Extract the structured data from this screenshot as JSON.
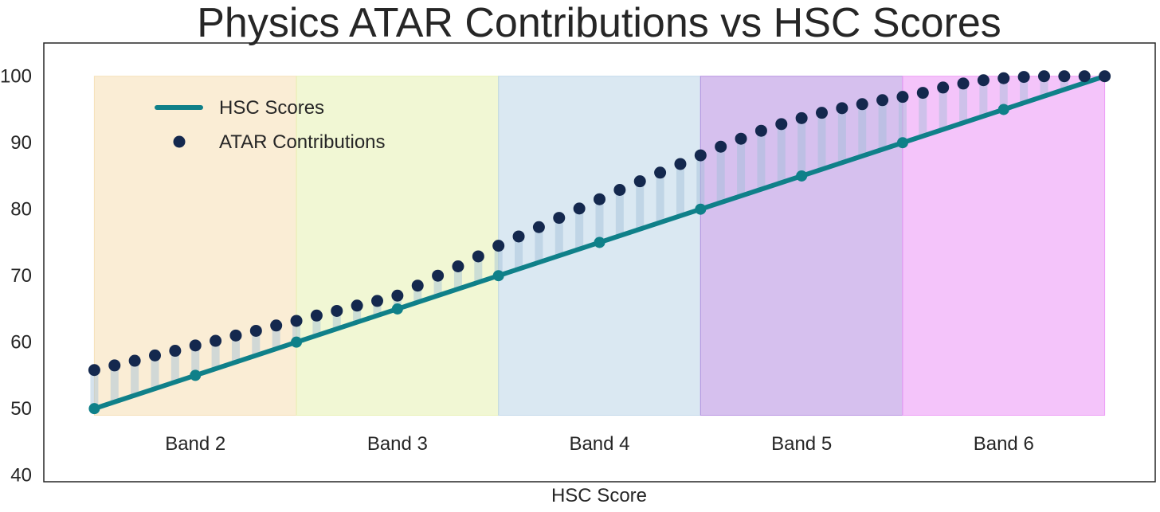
{
  "chart_data": {
    "type": "line",
    "title": "Physics ATAR Contributions vs HSC Scores",
    "xlabel": "HSC Score",
    "ylabel": "",
    "xlim": [
      47.5,
      102.5
    ],
    "ylim": [
      39,
      105
    ],
    "yticks": [
      40,
      50,
      60,
      70,
      80,
      90,
      100
    ],
    "grid": false,
    "legend_position": "top-left",
    "bands": [
      {
        "label": "Band 2",
        "x0": 50,
        "x1": 60,
        "color": "#f5deb3"
      },
      {
        "label": "Band 3",
        "x0": 60,
        "x1": 70,
        "color": "#e5f0b0"
      },
      {
        "label": "Band 4",
        "x0": 70,
        "x1": 80,
        "color": "#bcd6e8"
      },
      {
        "label": "Band 5",
        "x0": 80,
        "x1": 90,
        "color": "#b48ce0"
      },
      {
        "label": "Band 6",
        "x0": 90,
        "x1": 100,
        "color": "#eb94f5"
      }
    ],
    "band_y_range": [
      49,
      100
    ],
    "series": [
      {
        "name": "HSC Scores",
        "type": "line",
        "color": "#0f8089",
        "x": [
          50,
          55,
          60,
          65,
          70,
          75,
          80,
          85,
          90,
          95,
          100
        ],
        "values": [
          50,
          55,
          60,
          65,
          70,
          75,
          80,
          85,
          90,
          95,
          100
        ]
      },
      {
        "name": "ATAR Contributions",
        "type": "scatter",
        "color": "#14284e",
        "x": [
          50,
          51,
          52,
          53,
          54,
          55,
          56,
          57,
          58,
          59,
          60,
          61,
          62,
          63,
          64,
          65,
          66,
          67,
          68,
          69,
          70,
          71,
          72,
          73,
          74,
          75,
          76,
          77,
          78,
          79,
          80,
          81,
          82,
          83,
          84,
          85,
          86,
          87,
          88,
          89,
          90,
          91,
          92,
          93,
          94,
          95,
          96,
          97,
          98,
          99,
          100
        ],
        "values": [
          55.8,
          56.5,
          57.2,
          58.0,
          58.7,
          59.5,
          60.2,
          61.0,
          61.7,
          62.5,
          63.2,
          64.0,
          64.7,
          65.5,
          66.2,
          67.0,
          68.5,
          70.0,
          71.4,
          72.9,
          74.5,
          75.9,
          77.3,
          78.7,
          80.1,
          81.5,
          82.9,
          84.2,
          85.5,
          86.8,
          88.1,
          89.4,
          90.6,
          91.8,
          92.8,
          93.7,
          94.5,
          95.2,
          95.8,
          96.4,
          96.9,
          97.5,
          98.3,
          98.9,
          99.4,
          99.7,
          99.9,
          100.0,
          100.0,
          100.0,
          100.0
        ]
      }
    ],
    "stem_color": "#9fbfd8"
  }
}
